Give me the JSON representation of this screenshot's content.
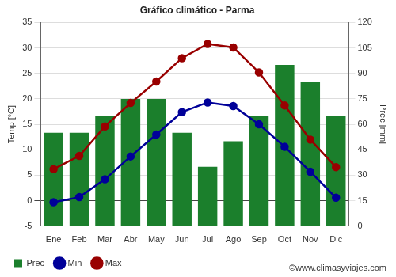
{
  "chart_data": {
    "type": "bar",
    "title": "Gráfico climático - Parma",
    "y_label": "Temp [°C]",
    "y2_label": "Prec [mm]",
    "annotations": [
      "©www.climasyviajes.com"
    ],
    "categories": [
      "Ene",
      "Feb",
      "Mar",
      "Abr",
      "May",
      "Jun",
      "Jul",
      "Ago",
      "Sep",
      "Oct",
      "Nov",
      "Dic"
    ],
    "series": [
      {
        "name": "Prec",
        "type": "bar",
        "axis": "y2",
        "color": "#1b7f2c",
        "values": [
          55,
          55,
          65,
          75,
          75,
          55,
          35,
          50,
          65,
          95,
          85,
          65
        ]
      },
      {
        "name": "Min",
        "type": "line",
        "color": "#000099",
        "marker": "circle",
        "line_style": "solid",
        "values": [
          -0.3,
          0.7,
          4.2,
          8.7,
          13,
          17.4,
          19.3,
          18.6,
          15,
          10.6,
          5.7,
          0.6
        ]
      },
      {
        "name": "Max",
        "type": "line",
        "color": "#990000",
        "marker": "circle",
        "line_style": "solid",
        "values": [
          6.2,
          8.8,
          14.6,
          19.2,
          23.4,
          28,
          30.8,
          30.1,
          25.2,
          18.7,
          12,
          6.6
        ]
      }
    ],
    "ylim": [
      -5,
      35
    ],
    "yticks": [
      -5,
      0,
      5,
      10,
      15,
      20,
      25,
      30,
      35
    ],
    "y2lim": [
      0,
      120
    ],
    "y2ticks": [
      0,
      15,
      30,
      45,
      60,
      75,
      90,
      105,
      120
    ],
    "grid": true,
    "legend": "bottom"
  }
}
